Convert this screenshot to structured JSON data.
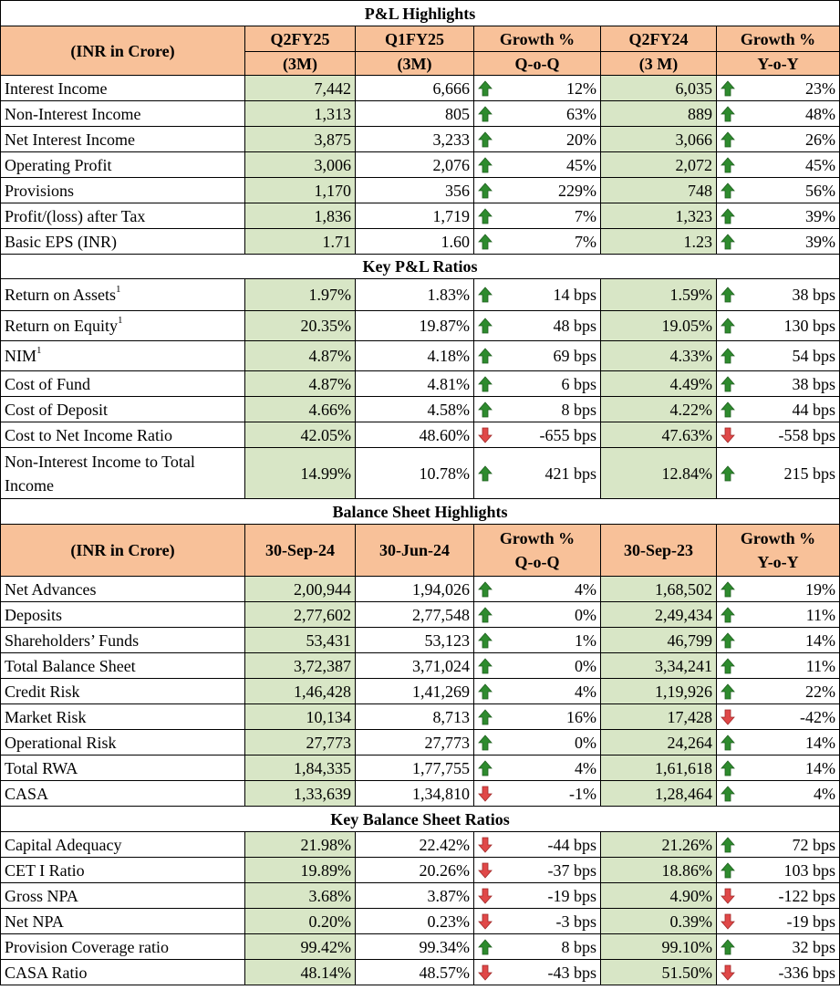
{
  "colors": {
    "header_bg": "#f8c199",
    "highlight_bg": "#d8e6c6",
    "arrow_up": "#2e8b2e",
    "arrow_down": "#e04848"
  },
  "pl": {
    "title": "P&L Highlights",
    "header": {
      "label": "(INR in Crore)",
      "c1": [
        "Q2FY25",
        "(3M)"
      ],
      "c2": [
        "Q1FY25",
        "(3M)"
      ],
      "c3": [
        "Growth %",
        "Q-o-Q"
      ],
      "c4": [
        "Q2FY24",
        "(3 M)"
      ],
      "c5": [
        "Growth %",
        "Y-o-Y"
      ]
    },
    "rows": [
      {
        "label": "Interest Income",
        "sup": "",
        "v1": "7,442",
        "v2": "6,666",
        "d1": "up",
        "g1": "12%",
        "v3": "6,035",
        "d2": "up",
        "g2": "23%"
      },
      {
        "label": "Non-Interest Income",
        "sup": "",
        "v1": "1,313",
        "v2": "805",
        "d1": "up",
        "g1": "63%",
        "v3": "889",
        "d2": "up",
        "g2": "48%"
      },
      {
        "label": "Net Interest Income",
        "sup": "",
        "v1": "3,875",
        "v2": "3,233",
        "d1": "up",
        "g1": "20%",
        "v3": "3,066",
        "d2": "up",
        "g2": "26%"
      },
      {
        "label": "Operating Profit",
        "sup": "",
        "v1": "3,006",
        "v2": "2,076",
        "d1": "up",
        "g1": "45%",
        "v3": "2,072",
        "d2": "up",
        "g2": "45%"
      },
      {
        "label": "Provisions",
        "sup": "",
        "v1": "1,170",
        "v2": "356",
        "d1": "up",
        "g1": "229%",
        "v3": "748",
        "d2": "up",
        "g2": "56%"
      },
      {
        "label": "Profit/(loss) after Tax",
        "sup": "",
        "v1": "1,836",
        "v2": "1,719",
        "d1": "up",
        "g1": "7%",
        "v3": "1,323",
        "d2": "up",
        "g2": "39%"
      },
      {
        "label": "Basic EPS (INR)",
        "sup": "",
        "v1": "1.71",
        "v2": "1.60",
        "d1": "up",
        "g1": "7%",
        "v3": "1.23",
        "d2": "up",
        "g2": "39%"
      }
    ]
  },
  "pl_ratios": {
    "title": "Key P&L Ratios",
    "rows": [
      {
        "label": "Return on Assets",
        "sup": "1",
        "v1": "1.97%",
        "v2": "1.83%",
        "d1": "up",
        "g1": "14 bps",
        "v3": "1.59%",
        "d2": "up",
        "g2": "38 bps"
      },
      {
        "label": "Return on Equity",
        "sup": "1",
        "v1": "20.35%",
        "v2": "19.87%",
        "d1": "up",
        "g1": "48 bps",
        "v3": "19.05%",
        "d2": "up",
        "g2": "130 bps"
      },
      {
        "label": "NIM",
        "sup": "1",
        "v1": "4.87%",
        "v2": "4.18%",
        "d1": "up",
        "g1": "69 bps",
        "v3": "4.33%",
        "d2": "up",
        "g2": "54 bps"
      },
      {
        "label": "Cost of Fund",
        "sup": "",
        "v1": "4.87%",
        "v2": "4.81%",
        "d1": "up",
        "g1": "6 bps",
        "v3": "4.49%",
        "d2": "up",
        "g2": "38 bps"
      },
      {
        "label": "Cost of Deposit",
        "sup": "",
        "v1": "4.66%",
        "v2": "4.58%",
        "d1": "up",
        "g1": "8 bps",
        "v3": "4.22%",
        "d2": "up",
        "g2": "44 bps"
      },
      {
        "label": "Cost to Net Income Ratio",
        "sup": "",
        "v1": "42.05%",
        "v2": "48.60%",
        "d1": "down",
        "g1": "-655 bps",
        "v3": "47.63%",
        "d2": "down",
        "g2": "-558 bps"
      },
      {
        "label": "Non-Interest Income to Total Income",
        "sup": "",
        "v1": "14.99%",
        "v2": "10.78%",
        "d1": "up",
        "g1": "421 bps",
        "v3": "12.84%",
        "d2": "up",
        "g2": "215 bps"
      }
    ]
  },
  "bs": {
    "title": "Balance Sheet Highlights",
    "header": {
      "label": "(INR in Crore)",
      "c1": "30-Sep-24",
      "c2": "30-Jun-24",
      "c3": [
        "Growth %",
        "Q-o-Q"
      ],
      "c4": "30-Sep-23",
      "c5": [
        "Growth %",
        "Y-o-Y"
      ]
    },
    "rows": [
      {
        "label": "Net Advances",
        "sup": "",
        "v1": "2,00,944",
        "v2": "1,94,026",
        "d1": "up",
        "g1": "4%",
        "v3": "1,68,502",
        "d2": "up",
        "g2": "19%"
      },
      {
        "label": "Deposits",
        "sup": "",
        "v1": "2,77,602",
        "v2": "2,77,548",
        "d1": "up",
        "g1": "0%",
        "v3": "2,49,434",
        "d2": "up",
        "g2": "11%"
      },
      {
        "label": "Shareholders’ Funds",
        "sup": "",
        "v1": "53,431",
        "v2": "53,123",
        "d1": "up",
        "g1": "1%",
        "v3": "46,799",
        "d2": "up",
        "g2": "14%"
      },
      {
        "label": "Total Balance Sheet",
        "sup": "",
        "v1": "3,72,387",
        "v2": "3,71,024",
        "d1": "up",
        "g1": "0%",
        "v3": "3,34,241",
        "d2": "up",
        "g2": "11%"
      },
      {
        "label": "Credit Risk",
        "sup": "",
        "v1": "1,46,428",
        "v2": "1,41,269",
        "d1": "up",
        "g1": "4%",
        "v3": "1,19,926",
        "d2": "up",
        "g2": "22%"
      },
      {
        "label": "Market Risk",
        "sup": "",
        "v1": "10,134",
        "v2": "8,713",
        "d1": "up",
        "g1": "16%",
        "v3": "17,428",
        "d2": "down",
        "g2": "-42%"
      },
      {
        "label": "Operational Risk",
        "sup": "",
        "v1": "27,773",
        "v2": "27,773",
        "d1": "up",
        "g1": "0%",
        "v3": "24,264",
        "d2": "up",
        "g2": "14%"
      },
      {
        "label": "Total RWA",
        "sup": "",
        "v1": "1,84,335",
        "v2": "1,77,755",
        "d1": "up",
        "g1": "4%",
        "v3": "1,61,618",
        "d2": "up",
        "g2": "14%"
      },
      {
        "label": "CASA",
        "sup": "",
        "v1": "1,33,639",
        "v2": "1,34,810",
        "d1": "down",
        "g1": "-1%",
        "v3": "1,28,464",
        "d2": "up",
        "g2": "4%"
      }
    ]
  },
  "bs_ratios": {
    "title": "Key Balance Sheet Ratios",
    "rows": [
      {
        "label": "Capital Adequacy",
        "sup": "",
        "v1": "21.98%",
        "v2": "22.42%",
        "d1": "down",
        "g1": "-44 bps",
        "v3": "21.26%",
        "d2": "up",
        "g2": "72 bps"
      },
      {
        "label": "CET I Ratio",
        "sup": "",
        "v1": "19.89%",
        "v2": "20.26%",
        "d1": "down",
        "g1": "-37 bps",
        "v3": "18.86%",
        "d2": "up",
        "g2": "103 bps"
      },
      {
        "label": "Gross NPA",
        "sup": "",
        "v1": "3.68%",
        "v2": "3.87%",
        "d1": "down",
        "g1": "-19 bps",
        "v3": "4.90%",
        "d2": "down",
        "g2": "-122 bps"
      },
      {
        "label": "Net NPA",
        "sup": "",
        "v1": "0.20%",
        "v2": "0.23%",
        "d1": "down",
        "g1": "-3 bps",
        "v3": "0.39%",
        "d2": "down",
        "g2": "-19 bps"
      },
      {
        "label": "Provision Coverage ratio",
        "sup": "",
        "v1": "99.42%",
        "v2": "99.34%",
        "d1": "up",
        "g1": "8 bps",
        "v3": "99.10%",
        "d2": "up",
        "g2": "32 bps"
      },
      {
        "label": "CASA Ratio",
        "sup": "",
        "v1": "48.14%",
        "v2": "48.57%",
        "d1": "down",
        "g1": "-43 bps",
        "v3": "51.50%",
        "d2": "down",
        "g2": "-336 bps"
      }
    ]
  }
}
